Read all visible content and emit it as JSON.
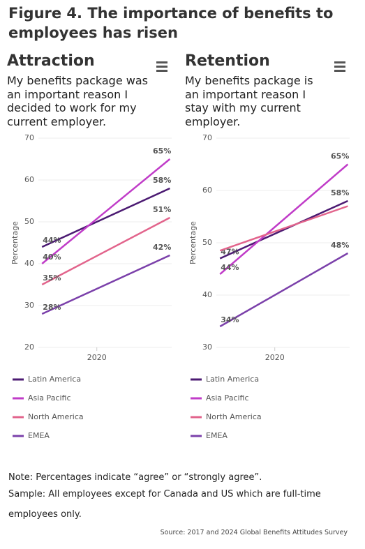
{
  "title": "Figure 4. The importance of benefits to employees has risen",
  "chart_data": [
    {
      "type": "line",
      "title": "Attraction",
      "subtitle": "My benefits package was an important reason I decided to work for my current employer.",
      "y_label": "Percentage",
      "x": [
        2017,
        2024
      ],
      "xlim": [
        2016.8,
        2024.1
      ],
      "xticks": [
        2020
      ],
      "ylim": [
        20,
        70
      ],
      "yticks": [
        20,
        30,
        40,
        50,
        60,
        70
      ],
      "grid": true,
      "series": [
        {
          "name": "Latin America",
          "color": "#4b1a72",
          "values": [
            44,
            58
          ],
          "value_labels": [
            "44%",
            "58%"
          ]
        },
        {
          "name": "Asia Pacific",
          "color": "#c03cc8",
          "values": [
            40,
            65
          ],
          "value_labels": [
            "40%",
            "65%"
          ]
        },
        {
          "name": "North America",
          "color": "#e2648c",
          "values": [
            35,
            51
          ],
          "value_labels": [
            "35%",
            "51%"
          ]
        },
        {
          "name": "EMEA",
          "color": "#7b40aa",
          "values": [
            28,
            42
          ],
          "value_labels": [
            "28%",
            "42%"
          ]
        }
      ]
    },
    {
      "type": "line",
      "title": "Retention",
      "subtitle": "My benefits package is an important reason I stay with my current employer.",
      "y_label": "Percentage",
      "x": [
        2017,
        2024
      ],
      "xlim": [
        2016.8,
        2024.1
      ],
      "xticks": [
        2020
      ],
      "ylim": [
        30,
        70
      ],
      "yticks": [
        30,
        40,
        50,
        60,
        70
      ],
      "grid": true,
      "series": [
        {
          "name": "Latin America",
          "color": "#4b1a72",
          "values": [
            47,
            58
          ],
          "value_labels": [
            "47%",
            "58%"
          ]
        },
        {
          "name": "Asia Pacific",
          "color": "#c03cc8",
          "values": [
            44,
            65
          ],
          "value_labels": [
            "44%",
            "65%"
          ]
        },
        {
          "name": "North America",
          "color": "#e2648c",
          "values": [
            48.5,
            57
          ]
        },
        {
          "name": "EMEA",
          "color": "#7b40aa",
          "values": [
            34,
            48
          ],
          "value_labels": [
            "34%",
            "48%"
          ]
        }
      ]
    }
  ],
  "notes": [
    "Note: Percentages indicate “agree” or “strongly agree”.",
    "Sample: All employees except for Canada and US which are full-time employees only."
  ],
  "source": "Source: 2017 and 2024 Global Benefits Attitudes Survey"
}
